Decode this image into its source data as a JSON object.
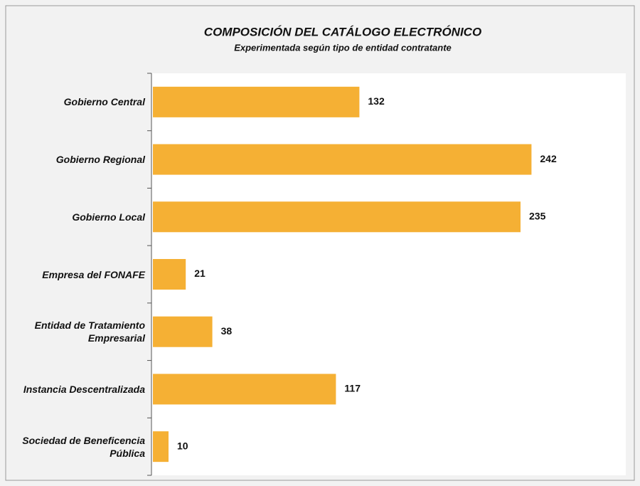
{
  "chart_data": {
    "type": "bar",
    "orientation": "horizontal",
    "title": "COMPOSICIÓN DEL CATÁLOGO  ELECTRÓNICO",
    "subtitle": "Experimentada según tipo de entidad contratante",
    "categories": [
      "Gobierno Central",
      "Gobierno Regional",
      "Gobierno Local",
      "Empresa del FONAFE",
      "Entidad de Tratamiento Empresarial",
      "Instancia Descentralizada",
      "Sociedad de Beneficencia Pública"
    ],
    "values": [
      132,
      242,
      235,
      21,
      38,
      117,
      10
    ],
    "color": "#f5b034"
  }
}
